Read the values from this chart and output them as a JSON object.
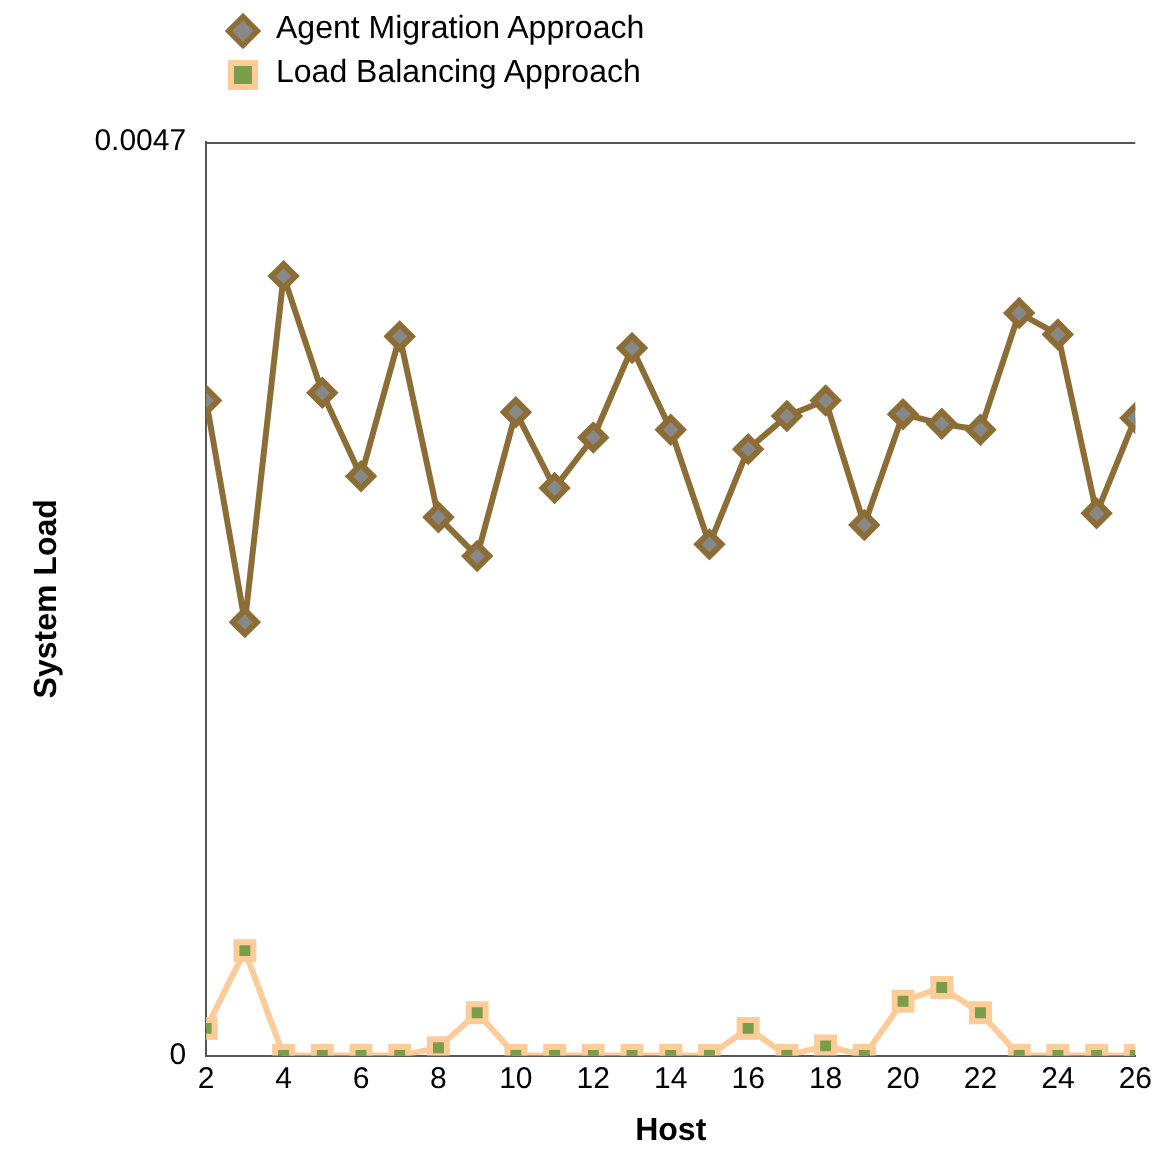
{
  "chart_data": {
    "type": "line",
    "xlabel": "Host",
    "ylabel": "System Load",
    "x": [
      2,
      3,
      4,
      5,
      6,
      7,
      8,
      9,
      10,
      11,
      12,
      13,
      14,
      15,
      16,
      17,
      18,
      19,
      20,
      21,
      22,
      23,
      24,
      25,
      26
    ],
    "xlim": [
      2,
      26
    ],
    "xticks": [
      2,
      4,
      6,
      8,
      10,
      12,
      14,
      16,
      18,
      20,
      22,
      24,
      26
    ],
    "ylim": [
      0,
      0.0047
    ],
    "yticks": [
      0,
      0.0047
    ],
    "grid": false,
    "legend": "top left",
    "line_style": "solid",
    "series": [
      {
        "name": "Agent Migration Approach",
        "color": "#8b6d35",
        "marker": "diamond",
        "values": [
          0.00337,
          0.00223,
          0.00401,
          0.00341,
          0.00298,
          0.0037,
          0.00277,
          0.00257,
          0.00331,
          0.00292,
          0.00318,
          0.00364,
          0.00322,
          0.00263,
          0.00312,
          0.00329,
          0.00337,
          0.00273,
          0.0033,
          0.00325,
          0.00322,
          0.00382,
          0.00371,
          0.00279,
          0.00328
        ]
      },
      {
        "name": "Load Balancing Approach",
        "color": "#ffcc99",
        "marker": "square",
        "values": [
          0.00014,
          0.00054,
          0,
          0,
          0,
          0,
          4e-05,
          0.00022,
          0,
          0,
          0,
          0,
          0,
          0,
          0.00014,
          0,
          5e-05,
          0,
          0.00028,
          0.00035,
          0.00022,
          0,
          0,
          0,
          0
        ]
      }
    ]
  }
}
